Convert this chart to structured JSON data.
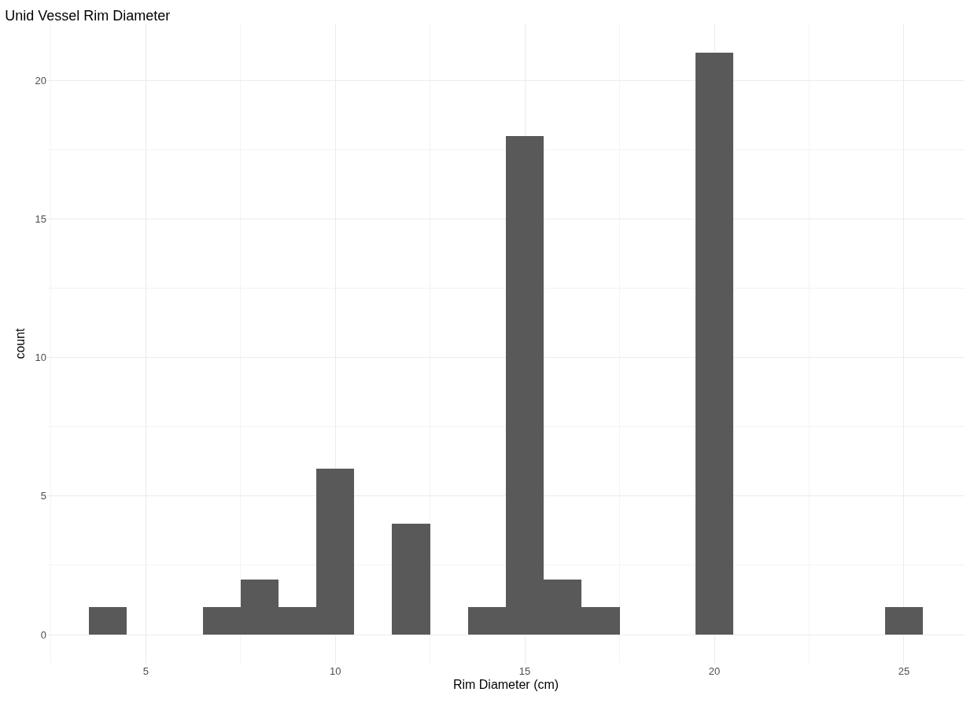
{
  "chart_data": {
    "type": "histogram",
    "title": "Unid Vessel Rim Diameter",
    "xlabel": "Rim Diameter (cm)",
    "ylabel": "count",
    "bins": [
      3.5,
      4.5,
      5.5,
      6.5,
      7.5,
      8.5,
      9.5,
      10.5,
      11.5,
      12.5,
      13.5,
      14.5,
      15.5,
      16.5,
      17.5,
      18.5,
      19.5,
      20.5,
      21.5,
      22.5,
      23.5,
      24.5,
      25.5
    ],
    "values": [
      1,
      0,
      0,
      1,
      2,
      1,
      6,
      0,
      4,
      0,
      1,
      18,
      2,
      1,
      0,
      0,
      21,
      0,
      0,
      0,
      0,
      1
    ],
    "color": "#595959",
    "xlim": [
      2.4,
      26.6
    ],
    "xticks": [
      5,
      10,
      15,
      20,
      25
    ],
    "ylim": [
      -1.05,
      22.05
    ],
    "yticks": [
      0,
      5,
      10,
      15,
      20
    ],
    "grid": true,
    "legend": false
  }
}
